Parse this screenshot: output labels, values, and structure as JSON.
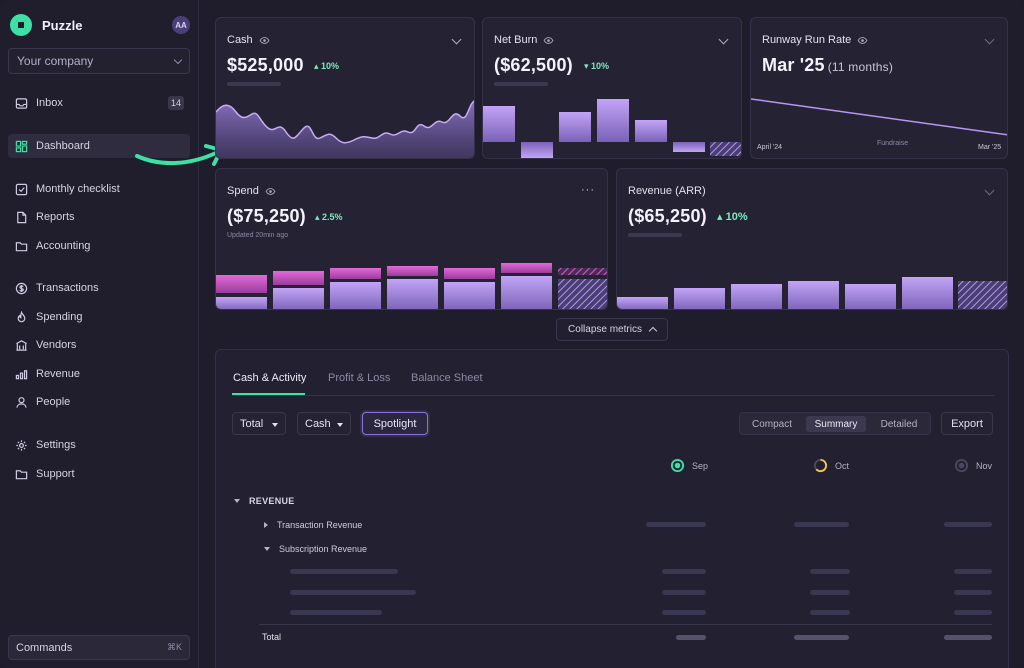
{
  "app": {
    "name": "Puzzle",
    "avatar_initials": "AA",
    "company": "Your company"
  },
  "sidebar": {
    "items": [
      {
        "label": "Inbox",
        "icon": "inbox-icon",
        "badge": "14"
      },
      {
        "label": "Dashboard",
        "icon": "dashboard-icon",
        "active": true
      },
      {
        "label": "Monthly checklist",
        "icon": "checklist-icon"
      },
      {
        "label": "Reports",
        "icon": "reports-icon"
      },
      {
        "label": "Accounting",
        "icon": "folder-icon"
      },
      {
        "label": "Transactions",
        "icon": "transactions-icon"
      },
      {
        "label": "Spending",
        "icon": "flame-icon"
      },
      {
        "label": "Vendors",
        "icon": "vendors-icon"
      },
      {
        "label": "Revenue",
        "icon": "revenue-icon"
      },
      {
        "label": "People",
        "icon": "person-icon"
      },
      {
        "label": "Settings",
        "icon": "gear-icon"
      },
      {
        "label": "Support",
        "icon": "folder-icon"
      }
    ],
    "commands": {
      "label": "Commands",
      "shortcut": "⌘K"
    }
  },
  "metrics": {
    "cash": {
      "title": "Cash",
      "value": "$525,000",
      "delta": "10%"
    },
    "net_burn": {
      "title": "Net Burn",
      "value": "($62,500)",
      "delta": "10%"
    },
    "runway": {
      "title": "Runway Run Rate",
      "value": "Mar '25",
      "sub": "(11 months)",
      "axis_start": "April '24",
      "axis_mid": "Fundraise",
      "axis_end": "Mar '25"
    },
    "spend": {
      "title": "Spend",
      "value": "($75,250)",
      "delta": "2.5%",
      "updated": "Updated 20min ago"
    },
    "revenue": {
      "title": "Revenue (ARR)",
      "value": "($65,250)",
      "delta": "10%"
    },
    "collapse_label": "Collapse metrics"
  },
  "panel": {
    "tabs": [
      "Cash & Activity",
      "Profit & Loss",
      "Balance Sheet"
    ],
    "filters": {
      "total": "Total",
      "cash": "Cash",
      "spotlight": "Spotlight"
    },
    "view_modes": [
      "Compact",
      "Summary",
      "Detailed"
    ],
    "active_view": "Summary",
    "export": "Export",
    "months": [
      "Sep",
      "Oct",
      "Nov"
    ],
    "rows": {
      "revenue": "REVENUE",
      "transaction_revenue": "Transaction Revenue",
      "subscription_revenue": "Subscription Revenue",
      "total": "Total"
    }
  },
  "colors": {
    "accent": "#3ee0a6",
    "bar_purple": "#b596f0",
    "bar_pink": "#d85ad3"
  }
}
